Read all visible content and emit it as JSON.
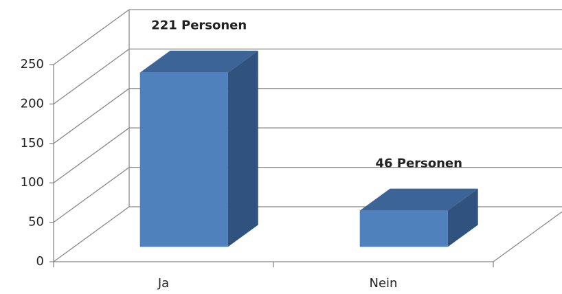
{
  "chart_data": {
    "type": "bar3d",
    "categories": [
      "Ja",
      "Nein"
    ],
    "values": [
      221,
      46
    ],
    "value_labels": [
      "221 Personen",
      "46 Personen"
    ],
    "color": "#4f81bd",
    "ylim": [
      0,
      250
    ],
    "yticks": [
      0,
      50,
      100,
      150,
      200,
      250
    ],
    "grid": true
  }
}
